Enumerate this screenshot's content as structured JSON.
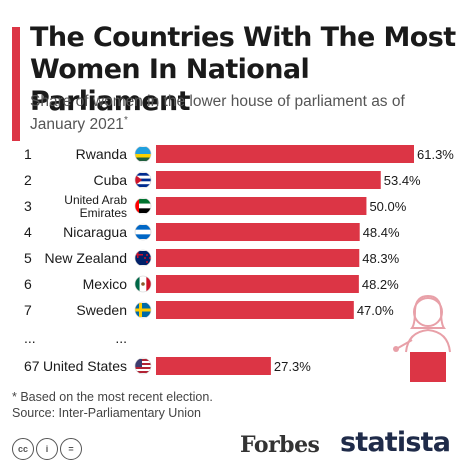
{
  "header": {
    "title": "The Countries With The Most Women In National Parliament",
    "subtitle": "Share of women in the lower house of parliament as of January 2021",
    "subtitle_mark": "*"
  },
  "chart_data": {
    "type": "bar",
    "orientation": "horizontal",
    "categories": [
      "Rwanda",
      "Cuba",
      "United Arab Emirates",
      "Nicaragua",
      "New Zealand",
      "Mexico",
      "Sweden",
      "United States"
    ],
    "ranks": [
      "1",
      "2",
      "3",
      "4",
      "5",
      "6",
      "7",
      "67"
    ],
    "values": [
      61.3,
      53.4,
      50.0,
      48.4,
      48.3,
      48.2,
      47.0,
      27.3
    ],
    "value_labels": [
      "61.3%",
      "53.4%",
      "50.0%",
      "48.4%",
      "48.3%",
      "48.2%",
      "47.0%",
      "27.3%"
    ],
    "flags": [
      "flag-rwanda-icon",
      "flag-cuba-icon",
      "flag-uae-icon",
      "flag-nicaragua-icon",
      "flag-new-zealand-icon",
      "flag-mexico-icon",
      "flag-sweden-icon",
      "flag-usa-icon"
    ],
    "gap_marker": "...",
    "unit": "%",
    "bar_color": "#dc3545",
    "xlim": [
      0,
      61.3
    ],
    "grid": false
  },
  "footer": {
    "footnote": "* Based on the most recent election.",
    "source": "Source: Inter-Parliamentary Union",
    "license_icons": [
      "cc",
      "i",
      "="
    ],
    "forbes": "Forbes",
    "statista": "statista"
  },
  "colors": {
    "accent": "#dc3545",
    "title": "#1a1a1a",
    "statista_navy": "#1f2b49"
  }
}
